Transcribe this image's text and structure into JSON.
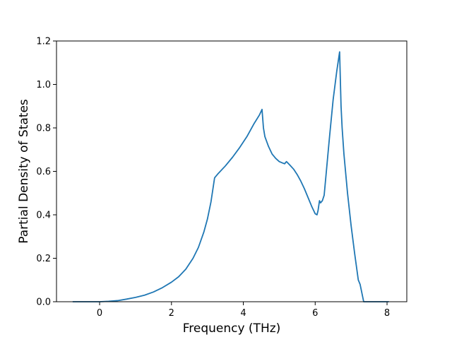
{
  "chart_data": {
    "type": "line",
    "title": "",
    "xlabel": "Frequency (THz)",
    "ylabel": "Partial Density of States",
    "xlim": [
      -1.2,
      8.55
    ],
    "ylim": [
      0.0,
      1.2
    ],
    "xticks": [
      0,
      2,
      4,
      6,
      8
    ],
    "xtick_labels": [
      "0",
      "2",
      "4",
      "6",
      "8"
    ],
    "yticks": [
      0.0,
      0.2,
      0.4,
      0.6,
      0.8,
      1.0,
      1.2
    ],
    "ytick_labels": [
      "0.0",
      "0.2",
      "0.4",
      "0.6",
      "0.8",
      "1.0",
      "1.2"
    ],
    "grid": false,
    "series": [
      {
        "color": "#1f77b4",
        "x": [
          -0.75,
          -0.5,
          -0.25,
          0.0,
          0.25,
          0.5,
          0.75,
          1.0,
          1.25,
          1.5,
          1.75,
          2.0,
          2.2,
          2.4,
          2.6,
          2.75,
          2.9,
          3.0,
          3.1,
          3.2,
          3.3,
          3.5,
          3.7,
          3.9,
          4.1,
          4.3,
          4.45,
          4.52,
          4.56,
          4.6,
          4.7,
          4.8,
          4.9,
          5.0,
          5.1,
          5.15,
          5.2,
          5.3,
          5.4,
          5.5,
          5.6,
          5.7,
          5.8,
          5.9,
          6.0,
          6.05,
          6.08,
          6.12,
          6.15,
          6.2,
          6.25,
          6.3,
          6.35,
          6.4,
          6.5,
          6.6,
          6.68,
          6.72,
          6.75,
          6.8,
          6.9,
          7.0,
          7.1,
          7.2,
          7.25,
          7.3,
          7.35,
          7.4,
          7.5,
          7.8,
          8.05
        ],
        "y": [
          0.0,
          0.0,
          0.0,
          0.0,
          0.002,
          0.005,
          0.012,
          0.02,
          0.03,
          0.045,
          0.065,
          0.09,
          0.115,
          0.15,
          0.2,
          0.25,
          0.32,
          0.38,
          0.46,
          0.57,
          0.59,
          0.625,
          0.665,
          0.71,
          0.76,
          0.82,
          0.86,
          0.885,
          0.8,
          0.76,
          0.715,
          0.68,
          0.66,
          0.645,
          0.638,
          0.635,
          0.645,
          0.628,
          0.61,
          0.585,
          0.555,
          0.52,
          0.48,
          0.44,
          0.405,
          0.4,
          0.42,
          0.465,
          0.455,
          0.465,
          0.49,
          0.58,
          0.67,
          0.76,
          0.93,
          1.06,
          1.15,
          0.9,
          0.8,
          0.68,
          0.5,
          0.35,
          0.22,
          0.1,
          0.08,
          0.04,
          0.0,
          0.0,
          0.0,
          0.0,
          0.0
        ]
      }
    ]
  }
}
